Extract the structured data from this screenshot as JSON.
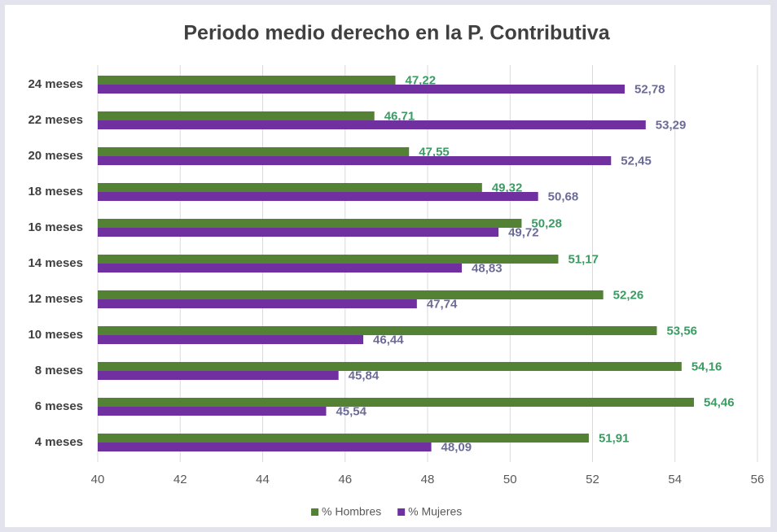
{
  "chart_data": {
    "type": "bar",
    "orientation": "horizontal",
    "title": "Periodo medio derecho en la P. Contributiva",
    "categories": [
      "24 meses",
      "22 meses",
      "20 meses",
      "18 meses",
      "16 meses",
      "14 meses",
      "12 meses",
      "10 meses",
      "8 meses",
      "6 meses",
      "4 meses"
    ],
    "series": [
      {
        "name": "% Hombres",
        "color": "#548235",
        "label_color": "#3d9a63",
        "values": [
          47.22,
          46.71,
          47.55,
          49.32,
          50.28,
          51.17,
          52.26,
          53.56,
          54.16,
          54.46,
          51.91
        ],
        "value_labels": [
          "47,22",
          "46,71",
          "47,55",
          "49,32",
          "50,28",
          "51,17",
          "52,26",
          "53,56",
          "54,16",
          "54,46",
          "51,91"
        ]
      },
      {
        "name": "% Mujeres",
        "color": "#7030a0",
        "label_color": "#6b6b99",
        "values": [
          52.78,
          53.29,
          52.45,
          50.68,
          49.72,
          48.83,
          47.74,
          46.44,
          45.84,
          45.54,
          48.09
        ],
        "value_labels": [
          "52,78",
          "53,29",
          "52,45",
          "50,68",
          "49,72",
          "48,83",
          "47,74",
          "46,44",
          "45,84",
          "45,54",
          "48,09"
        ]
      }
    ],
    "xlim": [
      40,
      56
    ],
    "xticks": [
      40,
      42,
      44,
      46,
      48,
      50,
      52,
      54,
      56
    ],
    "grid": true,
    "legend": "bottom"
  }
}
